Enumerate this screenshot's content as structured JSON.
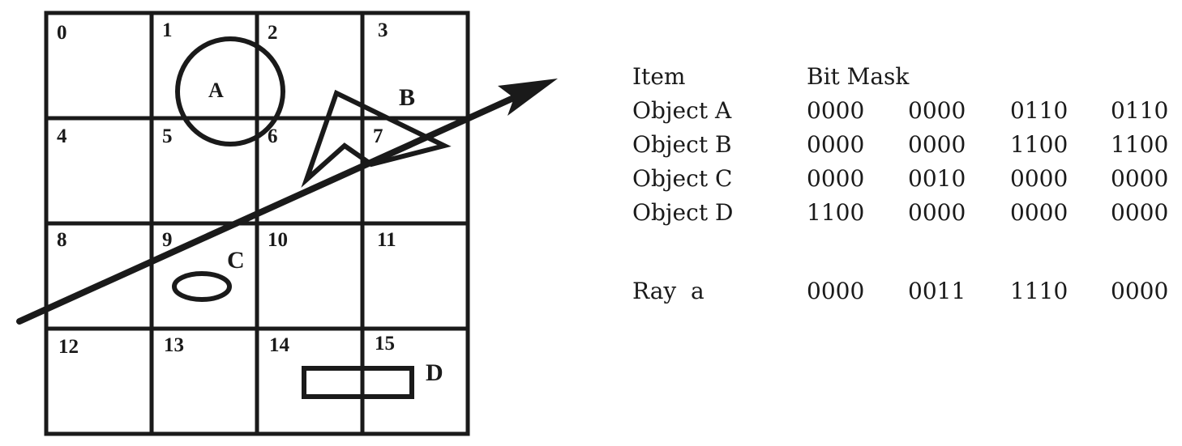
{
  "grid": {
    "cells": [
      "0",
      "1",
      "2",
      "3",
      "4",
      "5",
      "6",
      "7",
      "8",
      "9",
      "10",
      "11",
      "12",
      "13",
      "14",
      "15"
    ]
  },
  "objects": {
    "a": "A",
    "b": "B",
    "c": "C",
    "d": "D"
  },
  "table": {
    "header": {
      "item": "Item",
      "mask": "Bit Mask"
    },
    "rows": [
      {
        "item": "Object A",
        "bits": [
          "0000",
          "0000",
          "0110",
          "0110"
        ]
      },
      {
        "item": "Object B",
        "bits": [
          "0000",
          "0000",
          "1100",
          "1100"
        ]
      },
      {
        "item": "Object C",
        "bits": [
          "0000",
          "0010",
          "0000",
          "0000"
        ]
      },
      {
        "item": "Object D",
        "bits": [
          "1100",
          "0000",
          "0000",
          "0000"
        ]
      }
    ],
    "ray": {
      "item": "Ray  a",
      "bits": [
        "0000",
        "0011",
        "1110",
        "0000"
      ]
    }
  },
  "colors": {
    "ink": "#1a1a1a",
    "background": "#ffffff"
  }
}
